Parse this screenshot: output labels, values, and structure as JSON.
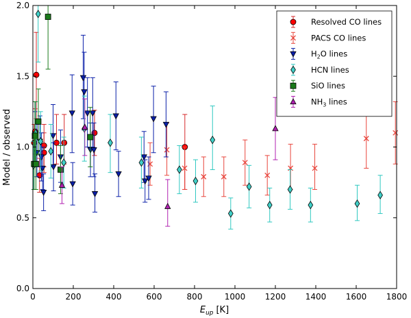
{
  "chart_data": {
    "type": "scatter",
    "title": "",
    "xlabel": "E_up [K]",
    "xlabel_main": "E",
    "xlabel_sub": "up",
    "xlabel_unit": "[K]",
    "ylabel": "Model / observed",
    "xlim": [
      0,
      1800
    ],
    "ylim": [
      0.0,
      2.0
    ],
    "xticks": [
      0,
      200,
      400,
      600,
      800,
      1000,
      1200,
      1400,
      1600,
      1800
    ],
    "xtick_labels": [
      "0",
      "200",
      "400",
      "600",
      "800",
      "1000",
      "1200",
      "1400",
      "1600",
      "1800"
    ],
    "yticks": [
      0.0,
      0.5,
      1.0,
      1.5,
      2.0
    ],
    "ytick_labels": [
      "0.0",
      "0.5",
      "1.0",
      "1.5",
      "2.0"
    ],
    "legend_position": "top-right",
    "series": [
      {
        "name": "Resolved CO lines",
        "legend_main": "Resolved CO lines",
        "legend_sub": "",
        "legend_tail": "",
        "marker": "circle",
        "color": "#d62728",
        "fill": "#ff0000",
        "points": [
          {
            "x": 6,
            "y": 1.03,
            "lo": 0.88,
            "hi": 1.16
          },
          {
            "x": 11,
            "y": 1.11,
            "lo": 0.95,
            "hi": 1.27
          },
          {
            "x": 17,
            "y": 1.51,
            "lo": 1.2,
            "hi": 1.81
          },
          {
            "x": 33,
            "y": 0.8,
            "lo": 0.68,
            "hi": 0.92
          },
          {
            "x": 55,
            "y": 1.01,
            "lo": 0.86,
            "hi": 1.16
          },
          {
            "x": 55,
            "y": 0.96,
            "lo": 0.82,
            "hi": 1.1
          },
          {
            "x": 117,
            "y": 1.03,
            "lo": 0.88,
            "hi": 1.23
          },
          {
            "x": 155,
            "y": 1.03,
            "lo": 0.88,
            "hi": 1.23
          },
          {
            "x": 305,
            "y": 1.1,
            "lo": 0.94,
            "hi": 1.26
          },
          {
            "x": 752,
            "y": 1.0,
            "lo": 0.7,
            "hi": 1.23
          }
        ]
      },
      {
        "name": "PACS CO lines",
        "legend_main": "PACS CO lines",
        "legend_sub": "",
        "legend_tail": "",
        "marker": "x",
        "color": "#e8453c",
        "fill": "#e8453c",
        "points": [
          {
            "x": 580,
            "y": 0.88,
            "lo": 0.73,
            "hi": 1.03
          },
          {
            "x": 663,
            "y": 0.98,
            "lo": 0.8,
            "hi": 1.17
          },
          {
            "x": 751,
            "y": 0.85,
            "lo": 0.7,
            "hi": 1.0
          },
          {
            "x": 845,
            "y": 0.79,
            "lo": 0.65,
            "hi": 0.93
          },
          {
            "x": 945,
            "y": 0.79,
            "lo": 0.65,
            "hi": 0.93
          },
          {
            "x": 1050,
            "y": 0.89,
            "lo": 0.73,
            "hi": 1.05
          },
          {
            "x": 1160,
            "y": 0.8,
            "lo": 0.66,
            "hi": 0.94
          },
          {
            "x": 1275,
            "y": 0.85,
            "lo": 0.7,
            "hi": 1.02
          },
          {
            "x": 1395,
            "y": 0.85,
            "lo": 0.7,
            "hi": 1.02
          },
          {
            "x": 1650,
            "y": 1.06,
            "lo": 0.85,
            "hi": 1.27
          },
          {
            "x": 1794,
            "y": 1.1,
            "lo": 0.88,
            "hi": 1.32
          }
        ]
      },
      {
        "name": "H2O lines",
        "legend_main": "H",
        "legend_sub": "2",
        "legend_tail": "O lines",
        "marker": "triangle-down",
        "color": "#0a1fa8",
        "fill": "#0a1fa8",
        "points": [
          {
            "x": 10,
            "y": 1.07,
            "lo": 0.9,
            "hi": 1.25
          },
          {
            "x": 20,
            "y": 0.96,
            "lo": 0.79,
            "hi": 1.16
          },
          {
            "x": 35,
            "y": 1.04,
            "lo": 0.86,
            "hi": 1.22
          },
          {
            "x": 42,
            "y": 0.93,
            "lo": 0.76,
            "hi": 1.1
          },
          {
            "x": 48,
            "y": 0.85,
            "lo": 0.7,
            "hi": 1.0
          },
          {
            "x": 53,
            "y": 0.68,
            "lo": 0.55,
            "hi": 0.81
          },
          {
            "x": 100,
            "y": 1.08,
            "lo": 0.86,
            "hi": 1.3
          },
          {
            "x": 102,
            "y": 0.86,
            "lo": 0.69,
            "hi": 1.03
          },
          {
            "x": 137,
            "y": 0.93,
            "lo": 0.75,
            "hi": 1.12
          },
          {
            "x": 194,
            "y": 1.24,
            "lo": 0.96,
            "hi": 1.51
          },
          {
            "x": 197,
            "y": 0.74,
            "lo": 0.59,
            "hi": 0.89
          },
          {
            "x": 249,
            "y": 1.49,
            "lo": 1.2,
            "hi": 1.79
          },
          {
            "x": 254,
            "y": 1.39,
            "lo": 1.12,
            "hi": 1.67
          },
          {
            "x": 270,
            "y": 1.24,
            "lo": 1.0,
            "hi": 1.49
          },
          {
            "x": 285,
            "y": 0.98,
            "lo": 0.79,
            "hi": 1.17
          },
          {
            "x": 296,
            "y": 1.24,
            "lo": 1.0,
            "hi": 1.49
          },
          {
            "x": 302,
            "y": 0.98,
            "lo": 0.79,
            "hi": 1.17
          },
          {
            "x": 307,
            "y": 0.67,
            "lo": 0.54,
            "hi": 0.81
          },
          {
            "x": 411,
            "y": 1.22,
            "lo": 0.98,
            "hi": 1.46
          },
          {
            "x": 424,
            "y": 0.81,
            "lo": 0.65,
            "hi": 0.97
          },
          {
            "x": 550,
            "y": 0.93,
            "lo": 0.75,
            "hi": 1.11
          },
          {
            "x": 555,
            "y": 0.76,
            "lo": 0.61,
            "hi": 0.91
          },
          {
            "x": 573,
            "y": 0.78,
            "lo": 0.63,
            "hi": 0.93
          },
          {
            "x": 597,
            "y": 1.2,
            "lo": 0.96,
            "hi": 1.43
          },
          {
            "x": 659,
            "y": 1.16,
            "lo": 0.93,
            "hi": 1.39
          }
        ]
      },
      {
        "name": "HCN lines",
        "legend_main": "HCN lines",
        "legend_sub": "",
        "legend_tail": "",
        "marker": "diamond",
        "color": "#2ec8c0",
        "fill": "#40d0c8",
        "points": [
          {
            "x": 4,
            "y": 0.87,
            "lo": 0.7,
            "hi": 1.04
          },
          {
            "x": 13,
            "y": 1.1,
            "lo": 0.88,
            "hi": 1.32
          },
          {
            "x": 26,
            "y": 1.94,
            "lo": 1.6,
            "hi": 2.0
          },
          {
            "x": 38,
            "y": 1.04,
            "lo": 0.83,
            "hi": 1.25
          },
          {
            "x": 89,
            "y": 0.97,
            "lo": 0.78,
            "hi": 1.16
          },
          {
            "x": 153,
            "y": 0.89,
            "lo": 0.71,
            "hi": 1.07
          },
          {
            "x": 255,
            "y": 1.13,
            "lo": 0.9,
            "hi": 1.36
          },
          {
            "x": 383,
            "y": 1.03,
            "lo": 0.82,
            "hi": 1.23
          },
          {
            "x": 537,
            "y": 0.89,
            "lo": 0.71,
            "hi": 1.07
          },
          {
            "x": 725,
            "y": 0.84,
            "lo": 0.67,
            "hi": 1.01
          },
          {
            "x": 805,
            "y": 0.76,
            "lo": 0.61,
            "hi": 0.91
          },
          {
            "x": 889,
            "y": 1.05,
            "lo": 0.84,
            "hi": 1.29
          },
          {
            "x": 979,
            "y": 0.53,
            "lo": 0.42,
            "hi": 0.64
          },
          {
            "x": 1070,
            "y": 0.72,
            "lo": 0.57,
            "hi": 0.87
          },
          {
            "x": 1172,
            "y": 0.59,
            "lo": 0.47,
            "hi": 0.71
          },
          {
            "x": 1273,
            "y": 0.7,
            "lo": 0.56,
            "hi": 0.84
          },
          {
            "x": 1374,
            "y": 0.59,
            "lo": 0.47,
            "hi": 0.71
          },
          {
            "x": 1605,
            "y": 0.6,
            "lo": 0.48,
            "hi": 0.73
          },
          {
            "x": 1719,
            "y": 0.66,
            "lo": 0.53,
            "hi": 0.8
          }
        ]
      },
      {
        "name": "SiO lines",
        "legend_main": "SiO lines",
        "legend_sub": "",
        "legend_tail": "",
        "marker": "square",
        "color": "#1a7a1a",
        "fill": "#1a7a1a",
        "points": [
          {
            "x": 6,
            "y": 0.88,
            "lo": 0.7,
            "hi": 1.06
          },
          {
            "x": 10,
            "y": 1.08,
            "lo": 0.88,
            "hi": 1.32
          },
          {
            "x": 15,
            "y": 0.88,
            "lo": 0.7,
            "hi": 1.06
          },
          {
            "x": 27,
            "y": 1.18,
            "lo": 0.95,
            "hi": 1.41
          },
          {
            "x": 75,
            "y": 1.92,
            "lo": 1.55,
            "hi": 2.0
          },
          {
            "x": 137,
            "y": 0.84,
            "lo": 0.67,
            "hi": 1.01
          },
          {
            "x": 284,
            "y": 1.07,
            "lo": 0.86,
            "hi": 1.28
          }
        ]
      },
      {
        "name": "NH3 lines",
        "legend_main": "NH",
        "legend_sub": "3",
        "legend_tail": " lines",
        "marker": "triangle-up",
        "color": "#b020b0",
        "fill": "#b020b0",
        "points": [
          {
            "x": 144,
            "y": 0.73,
            "lo": 0.6,
            "hi": 0.86
          },
          {
            "x": 257,
            "y": 1.14,
            "lo": 0.94,
            "hi": 1.34
          },
          {
            "x": 667,
            "y": 0.58,
            "lo": 0.44,
            "hi": 0.77
          },
          {
            "x": 1200,
            "y": 1.13,
            "lo": 0.91,
            "hi": 1.35
          }
        ]
      }
    ]
  }
}
